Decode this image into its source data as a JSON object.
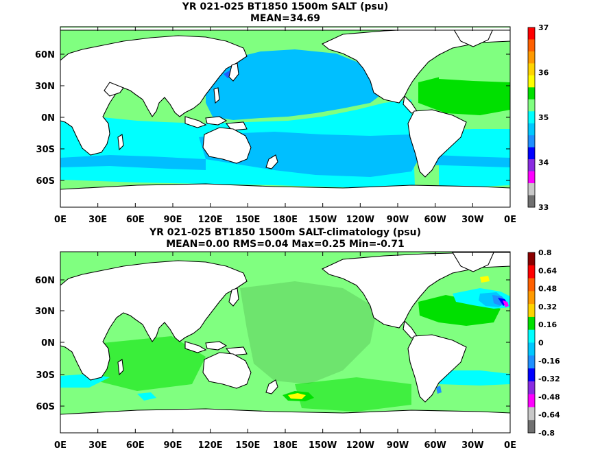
{
  "panels": [
    {
      "title_line1": "YR 021-025 BT1850 1500m SALT (psu)",
      "title_line2": "MEAN=34.69",
      "colorbar": {
        "labels": [
          "37",
          "36",
          "35",
          "34",
          "33"
        ],
        "colors": [
          "#ff0000",
          "#ff6000",
          "#ff9a00",
          "#ffd400",
          "#ffff00",
          "#00e000",
          "#80ff80",
          "#00ffff",
          "#00c8ff",
          "#1e90ff",
          "#0000ff",
          "#8a2be2",
          "#ff00ff",
          "#c8c8c8",
          "#707070"
        ]
      }
    },
    {
      "title_line1": "YR 021-025 BT1850 1500m SALT-climatology (psu)",
      "title_line2": "MEAN=0.00   RMS=0.04   Max=0.25   Min=-0.71",
      "colorbar": {
        "labels": [
          "0.8",
          "0.64",
          "0.48",
          "0.32",
          "0.16",
          "0",
          "-0.16",
          "-0.32",
          "-0.48",
          "-0.64",
          "-0.8"
        ],
        "colors": [
          "#8b0000",
          "#ff0000",
          "#ff6000",
          "#ff9a00",
          "#ffd400",
          "#00e000",
          "#00ffff",
          "#00c8ff",
          "#1e90ff",
          "#0000ff",
          "#8a2be2",
          "#ff00ff",
          "#c8c8c8",
          "#707070"
        ]
      }
    }
  ],
  "lat_labels": [
    "60N",
    "30N",
    "0N",
    "30S",
    "60S"
  ],
  "lon_labels": [
    "0E",
    "30E",
    "60E",
    "90E",
    "120E",
    "150E",
    "180E",
    "150W",
    "120W",
    "90W",
    "60W",
    "30W",
    "0E"
  ]
}
